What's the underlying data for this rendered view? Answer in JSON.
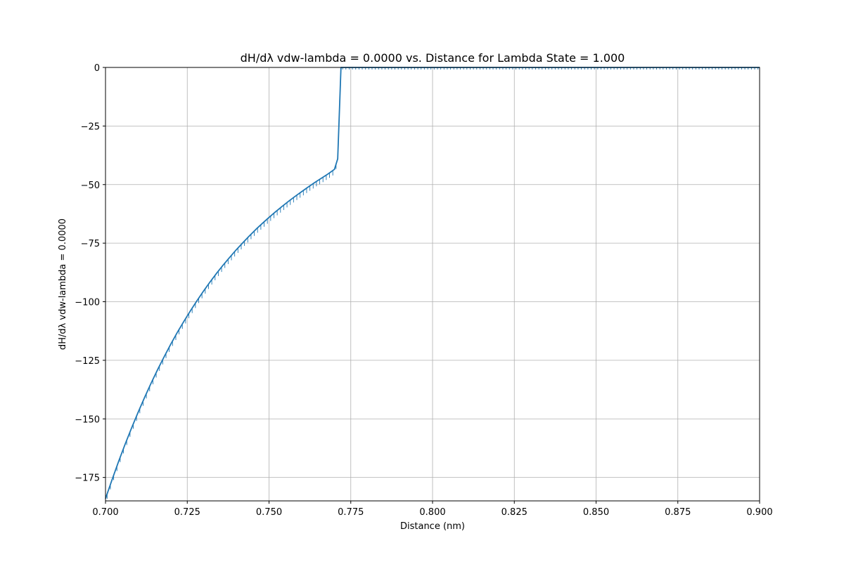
{
  "chart_data": {
    "type": "line",
    "title": "dH/dλ vdw-lambda = 0.0000 vs. Distance for Lambda State = 1.000",
    "xlabel": "Distance (nm)",
    "ylabel": "dH/dλ vdw-lambda = 0.0000",
    "xlim": [
      0.7,
      0.9
    ],
    "ylim": [
      -185,
      0
    ],
    "xticks": [
      "0.700",
      "0.725",
      "0.750",
      "0.775",
      "0.800",
      "0.825",
      "0.850",
      "0.875",
      "0.900"
    ],
    "yticks": [
      "0",
      "−25",
      "−50",
      "−75",
      "−100",
      "−125",
      "−150",
      "−175"
    ],
    "grid": true,
    "legend": "none",
    "series_color": "#1f77b4",
    "series": [
      {
        "x": [
          0.7,
          0.702,
          0.704,
          0.706,
          0.708,
          0.71,
          0.712,
          0.714,
          0.716,
          0.718,
          0.72,
          0.722,
          0.724,
          0.726,
          0.728,
          0.73,
          0.732,
          0.734,
          0.736,
          0.738,
          0.74,
          0.742,
          0.744,
          0.746,
          0.748,
          0.75,
          0.752,
          0.754,
          0.756,
          0.758,
          0.76,
          0.762,
          0.764,
          0.766,
          0.768,
          0.77,
          0.771,
          0.772,
          0.774,
          0.776,
          0.778,
          0.78,
          0.79,
          0.8,
          0.81,
          0.82,
          0.83,
          0.84,
          0.85,
          0.86,
          0.87,
          0.88,
          0.89,
          0.9
        ],
        "y": [
          -184,
          -176,
          -168.2,
          -160.8,
          -153.8,
          -147.1,
          -140.7,
          -134.6,
          -128.8,
          -123.3,
          -118,
          -113,
          -108.3,
          -103.8,
          -99.5,
          -95.4,
          -91.5,
          -87.8,
          -84.3,
          -81,
          -77.8,
          -74.8,
          -71.9,
          -69.1,
          -66.5,
          -64,
          -61.6,
          -59.3,
          -57.1,
          -55,
          -53,
          -51,
          -49.1,
          -47.3,
          -45.5,
          -43.5,
          -39,
          0,
          0,
          0,
          0,
          0,
          0,
          0,
          0,
          0,
          0,
          0,
          0,
          0,
          0,
          0,
          0,
          0
        ]
      }
    ]
  }
}
